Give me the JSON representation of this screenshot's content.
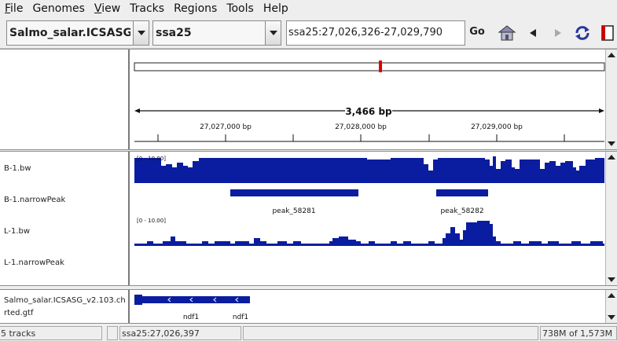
{
  "menu": [
    {
      "label": "File",
      "u": "F",
      "rest": "ile"
    },
    {
      "label": "Genomes",
      "u": "",
      "rest": "Genomes"
    },
    {
      "label": "View",
      "u": "V",
      "rest": "iew"
    },
    {
      "label": "Tracks",
      "u": "",
      "rest": "Tracks"
    },
    {
      "label": "Regions",
      "u": "",
      "rest": "Regions"
    },
    {
      "label": "Tools",
      "u": "",
      "rest": "Tools"
    },
    {
      "label": "Help",
      "u": "",
      "rest": "Help"
    }
  ],
  "toolbar": {
    "genome": "Salmo_salar.ICSASG...",
    "chromosome": "ssa25",
    "locus": "ssa25:27,026,326-27,029,790",
    "go_label": "Go",
    "icons": [
      "home-icon",
      "back-icon",
      "forward-icon",
      "refresh-icon",
      "region-of-interest-icon"
    ]
  },
  "ruler": {
    "span_label": "3,466 bp",
    "ticks": [
      "27,027,000 bp",
      "27,028,000 bp",
      "27,029,000 bp"
    ]
  },
  "tracks": [
    {
      "name": "B-1.bw",
      "range": "[0 - 10.00]"
    },
    {
      "name": "B-1.narrowPeak",
      "peaks": [
        "peak_58281",
        "peak_58282"
      ]
    },
    {
      "name": "L-1.bw",
      "range": "[0 - 10.00]"
    },
    {
      "name": "L-1.narrowPeak"
    }
  ],
  "annotation": {
    "name_line1": "Salmo_salar.ICSASG_v2.103.ch",
    "name_line2": "rted.gtf",
    "features": [
      "ndf1",
      "ndf1"
    ]
  },
  "status": {
    "tracks": "5 tracks",
    "position": "ssa25:27,026,397",
    "memory": "738M of 1,573M"
  },
  "colors": {
    "signal": "#0a1da0",
    "cytoband_marker": "#e00000"
  }
}
